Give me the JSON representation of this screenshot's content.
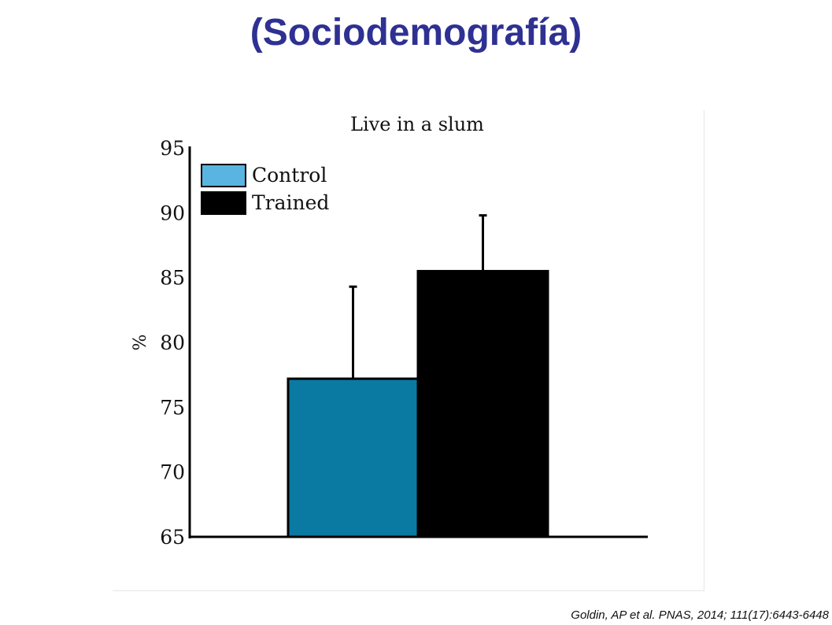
{
  "slide": {
    "title": "(Sociodemografía)",
    "citation": "Goldin, AP et al. PNAS, 2014; 111(17):6443-6448"
  },
  "chart_data": {
    "type": "bar",
    "title": "Live in a slum",
    "xlabel": "",
    "ylabel": "%",
    "ylim": [
      65,
      95
    ],
    "yticks": [
      65,
      70,
      75,
      80,
      85,
      90,
      95
    ],
    "grid": false,
    "legend_position": "top-left",
    "categories": [
      "Control",
      "Trained"
    ],
    "series": [
      {
        "name": "Control",
        "value": 77.2,
        "error": 7.1,
        "color": "#0a7aa3",
        "legend_color": "#5ab4e1"
      },
      {
        "name": "Trained",
        "value": 85.5,
        "error": 4.3,
        "color": "#000000",
        "legend_color": "#000000"
      }
    ]
  }
}
